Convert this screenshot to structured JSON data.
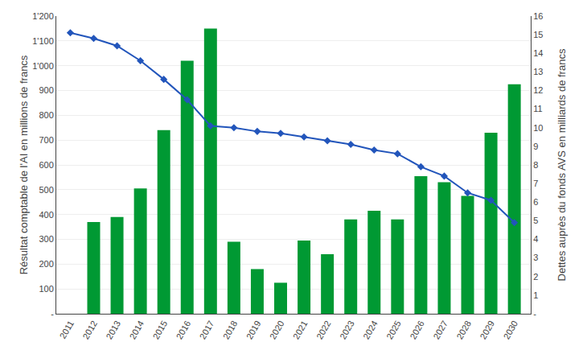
{
  "chart_data": {
    "type": "bar",
    "x": [
      2011,
      2012,
      2013,
      2014,
      2015,
      2016,
      2017,
      2018,
      2019,
      2020,
      2021,
      2022,
      2023,
      2024,
      2025,
      2026,
      2027,
      2028,
      2029,
      2030
    ],
    "xlim": [
      2010.4,
      2030.7
    ],
    "xticks": [
      2011,
      2012,
      2013,
      2014,
      2015,
      2016,
      2017,
      2018,
      2019,
      2020,
      2021,
      2022,
      2023,
      2024,
      2025,
      2026,
      2027,
      2028,
      2029,
      2030
    ],
    "ylabel": "Résultat comptable de l'AI en millions de francs",
    "y2label": "Dettes auprès du fonds AVS en milliards de francs",
    "ylim": [
      0,
      1200
    ],
    "yticks": [
      {
        "value": 0,
        "label": "-"
      },
      100,
      200,
      300,
      400,
      500,
      600,
      700,
      800,
      900,
      {
        "value": 1000,
        "label": "1'000"
      },
      {
        "value": 1100,
        "label": "1'100"
      },
      {
        "value": 1200,
        "label": "1'200"
      }
    ],
    "y2lim": [
      0,
      16
    ],
    "y2ticks": [
      {
        "value": 0,
        "label": "-"
      },
      1,
      2,
      3,
      4,
      5,
      6,
      7,
      8,
      9,
      10,
      11,
      12,
      13,
      14,
      15,
      16
    ],
    "grid": true,
    "series": [
      {
        "type": "bar",
        "color": "#009933",
        "values": [
          0,
          370,
          390,
          505,
          740,
          1020,
          1150,
          290,
          180,
          125,
          295,
          240,
          380,
          415,
          380,
          555,
          530,
          475,
          730,
          925
        ]
      },
      {
        "type": "line",
        "axis": "y2",
        "color": "#2255bb",
        "marker": "diamond",
        "values": [
          15.1,
          14.8,
          14.4,
          13.6,
          12.6,
          11.5,
          10.1,
          10.0,
          9.8,
          9.7,
          9.5,
          9.3,
          9.1,
          8.8,
          8.6,
          7.9,
          7.4,
          6.5,
          6.1,
          4.9
        ]
      }
    ]
  }
}
